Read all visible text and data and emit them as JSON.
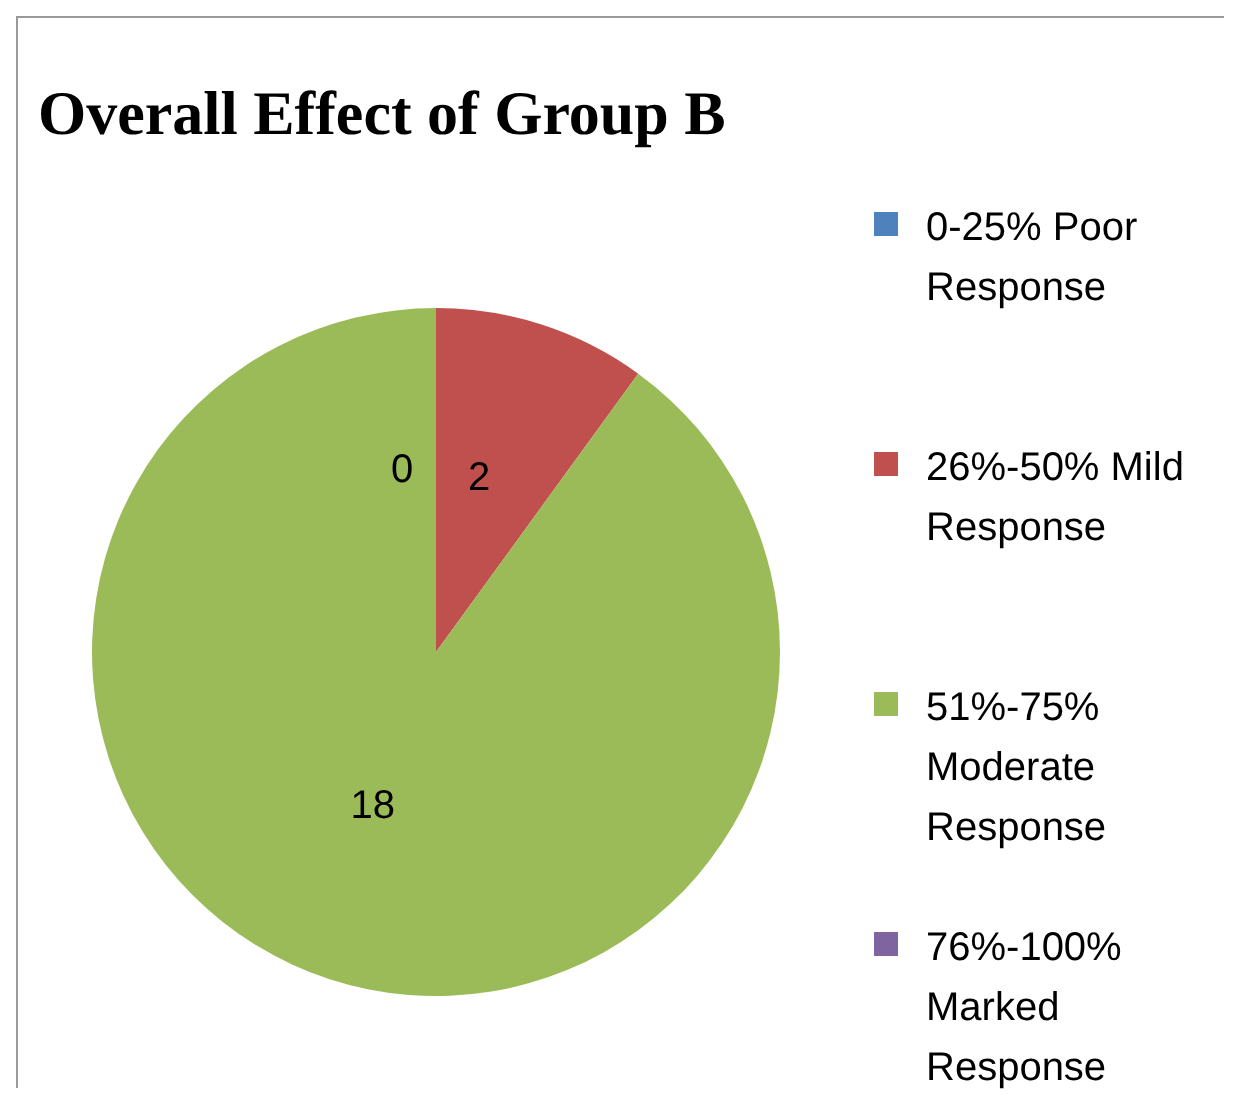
{
  "chart_data": {
    "type": "pie",
    "title": "Overall Effect of Group B",
    "categories": [
      "0-25% Poor Response",
      "26%-50% Mild Response",
      "51%-75% Moderate Response",
      "76%-100% Marked Response"
    ],
    "values": [
      0,
      2,
      18,
      0
    ],
    "colors": [
      "#4f81bd",
      "#c0504d",
      "#9bbb59",
      "#8064a2"
    ],
    "value_labels": [
      "0",
      "2",
      "18",
      null
    ],
    "legend": "right"
  }
}
